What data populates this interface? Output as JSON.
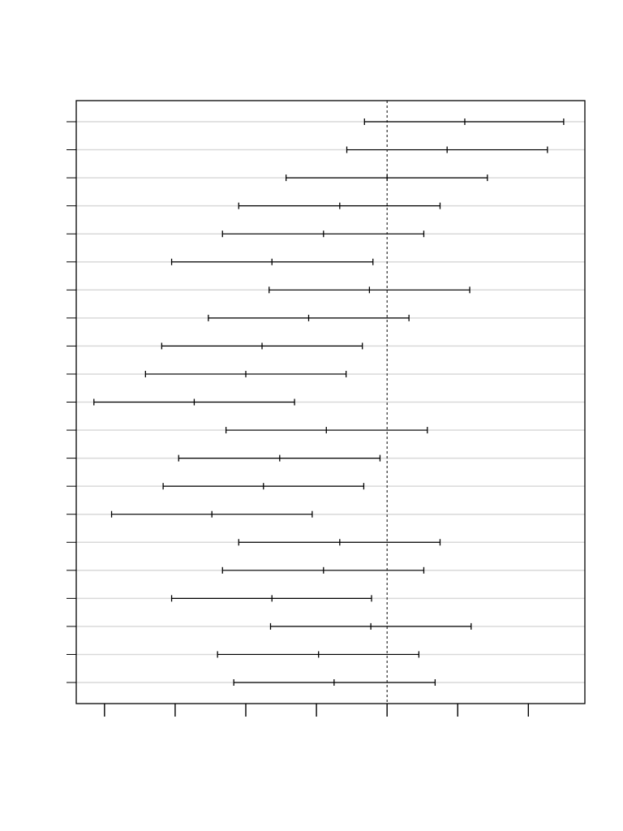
{
  "chart_data": {
    "type": "interval",
    "title": "",
    "xlabel": "",
    "ylabel": "",
    "x_ticks": [
      -4,
      -3,
      -2,
      -1,
      0,
      1,
      2
    ],
    "x_tick_labels": [
      "",
      "",
      "",
      "",
      "",
      "",
      ""
    ],
    "xlim": [
      -4.4,
      2.8
    ],
    "reference_line_x": 0,
    "grid": "horizontal",
    "intervals": [
      {
        "lower": -0.32,
        "estimate": 1.1,
        "upper": 2.5
      },
      {
        "lower": -0.57,
        "estimate": 0.85,
        "upper": 2.27
      },
      {
        "lower": -1.43,
        "estimate": 0.0,
        "upper": 1.42
      },
      {
        "lower": -2.1,
        "estimate": -0.67,
        "upper": 0.75
      },
      {
        "lower": -2.33,
        "estimate": -0.9,
        "upper": 0.52
      },
      {
        "lower": -3.05,
        "estimate": -1.63,
        "upper": -0.2
      },
      {
        "lower": -1.67,
        "estimate": -0.25,
        "upper": 1.17
      },
      {
        "lower": -2.53,
        "estimate": -1.11,
        "upper": 0.31
      },
      {
        "lower": -3.19,
        "estimate": -1.77,
        "upper": -0.35
      },
      {
        "lower": -3.42,
        "estimate": -2.0,
        "upper": -0.58
      },
      {
        "lower": -4.15,
        "estimate": -2.73,
        "upper": -1.31
      },
      {
        "lower": -2.28,
        "estimate": -0.86,
        "upper": 0.57
      },
      {
        "lower": -2.95,
        "estimate": -1.52,
        "upper": -0.1
      },
      {
        "lower": -3.17,
        "estimate": -1.75,
        "upper": -0.33
      },
      {
        "lower": -3.9,
        "estimate": -2.48,
        "upper": -1.06
      },
      {
        "lower": -2.1,
        "estimate": -0.67,
        "upper": 0.75
      },
      {
        "lower": -2.33,
        "estimate": -0.9,
        "upper": 0.52
      },
      {
        "lower": -3.05,
        "estimate": -1.63,
        "upper": -0.22
      },
      {
        "lower": -1.65,
        "estimate": -0.23,
        "upper": 1.19
      },
      {
        "lower": -2.4,
        "estimate": -0.97,
        "upper": 0.45
      },
      {
        "lower": -2.17,
        "estimate": -0.75,
        "upper": 0.68
      }
    ]
  }
}
